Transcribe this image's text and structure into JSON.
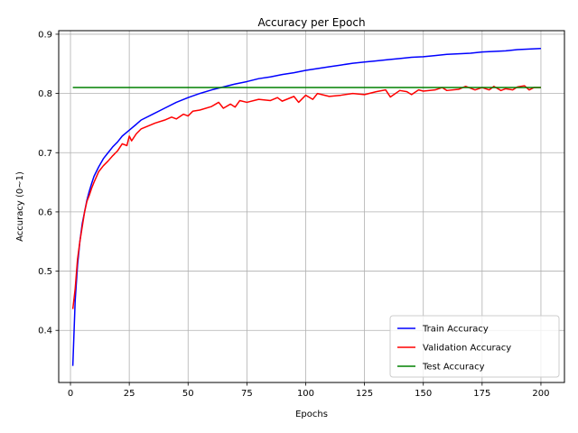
{
  "chart_data": {
    "type": "line",
    "title": "Accuracy per Epoch",
    "xlabel": "Epochs",
    "ylabel": "Accuracy (0~1)",
    "xlim": [
      -5,
      210
    ],
    "ylim": [
      0.312,
      0.906
    ],
    "xticks": [
      0,
      25,
      50,
      75,
      100,
      125,
      150,
      175,
      200
    ],
    "yticks": [
      0.4,
      0.5,
      0.6,
      0.7,
      0.8,
      0.9
    ],
    "grid": true,
    "legend_position": "lower-right",
    "series": [
      {
        "name": "Train Accuracy",
        "color": "#0000ff",
        "x": [
          1,
          2,
          3,
          4,
          5,
          6,
          7,
          8,
          9,
          10,
          12,
          14,
          16,
          18,
          20,
          22,
          25,
          28,
          30,
          35,
          40,
          45,
          50,
          55,
          60,
          65,
          70,
          75,
          80,
          85,
          90,
          95,
          100,
          105,
          110,
          115,
          120,
          125,
          130,
          135,
          140,
          145,
          150,
          155,
          160,
          165,
          170,
          175,
          180,
          185,
          190,
          195,
          200
        ],
        "y": [
          0.34,
          0.45,
          0.51,
          0.55,
          0.58,
          0.6,
          0.62,
          0.635,
          0.648,
          0.66,
          0.676,
          0.69,
          0.7,
          0.71,
          0.718,
          0.728,
          0.738,
          0.748,
          0.755,
          0.765,
          0.775,
          0.785,
          0.793,
          0.8,
          0.806,
          0.811,
          0.816,
          0.82,
          0.825,
          0.828,
          0.832,
          0.835,
          0.839,
          0.842,
          0.845,
          0.848,
          0.851,
          0.853,
          0.855,
          0.857,
          0.859,
          0.861,
          0.862,
          0.864,
          0.866,
          0.867,
          0.868,
          0.87,
          0.871,
          0.872,
          0.874,
          0.875,
          0.876
        ]
      },
      {
        "name": "Validation Accuracy",
        "color": "#ff0000",
        "x": [
          1,
          2,
          3,
          4,
          5,
          6,
          7,
          8,
          9,
          10,
          12,
          14,
          16,
          18,
          20,
          22,
          24,
          25,
          26,
          28,
          30,
          33,
          36,
          40,
          43,
          45,
          48,
          50,
          52,
          55,
          60,
          63,
          65,
          68,
          70,
          72,
          75,
          80,
          85,
          88,
          90,
          95,
          97,
          100,
          103,
          105,
          110,
          115,
          120,
          125,
          130,
          134,
          136,
          140,
          143,
          145,
          148,
          150,
          155,
          158,
          160,
          165,
          168,
          170,
          172,
          175,
          178,
          180,
          183,
          185,
          188,
          190,
          193,
          195,
          197,
          200
        ],
        "y": [
          0.436,
          0.47,
          0.52,
          0.55,
          0.575,
          0.6,
          0.618,
          0.628,
          0.64,
          0.65,
          0.668,
          0.678,
          0.686,
          0.695,
          0.703,
          0.715,
          0.712,
          0.728,
          0.72,
          0.732,
          0.74,
          0.745,
          0.75,
          0.755,
          0.76,
          0.757,
          0.765,
          0.762,
          0.77,
          0.772,
          0.778,
          0.785,
          0.775,
          0.782,
          0.777,
          0.788,
          0.785,
          0.79,
          0.788,
          0.793,
          0.787,
          0.795,
          0.785,
          0.797,
          0.79,
          0.8,
          0.795,
          0.797,
          0.8,
          0.798,
          0.803,
          0.806,
          0.794,
          0.805,
          0.803,
          0.798,
          0.806,
          0.804,
          0.806,
          0.81,
          0.805,
          0.807,
          0.812,
          0.809,
          0.806,
          0.81,
          0.806,
          0.812,
          0.805,
          0.808,
          0.806,
          0.811,
          0.813,
          0.806,
          0.81,
          0.81
        ]
      },
      {
        "name": "Test Accuracy",
        "color": "#008000",
        "x": [
          1,
          200
        ],
        "y": [
          0.81,
          0.81
        ]
      }
    ]
  }
}
